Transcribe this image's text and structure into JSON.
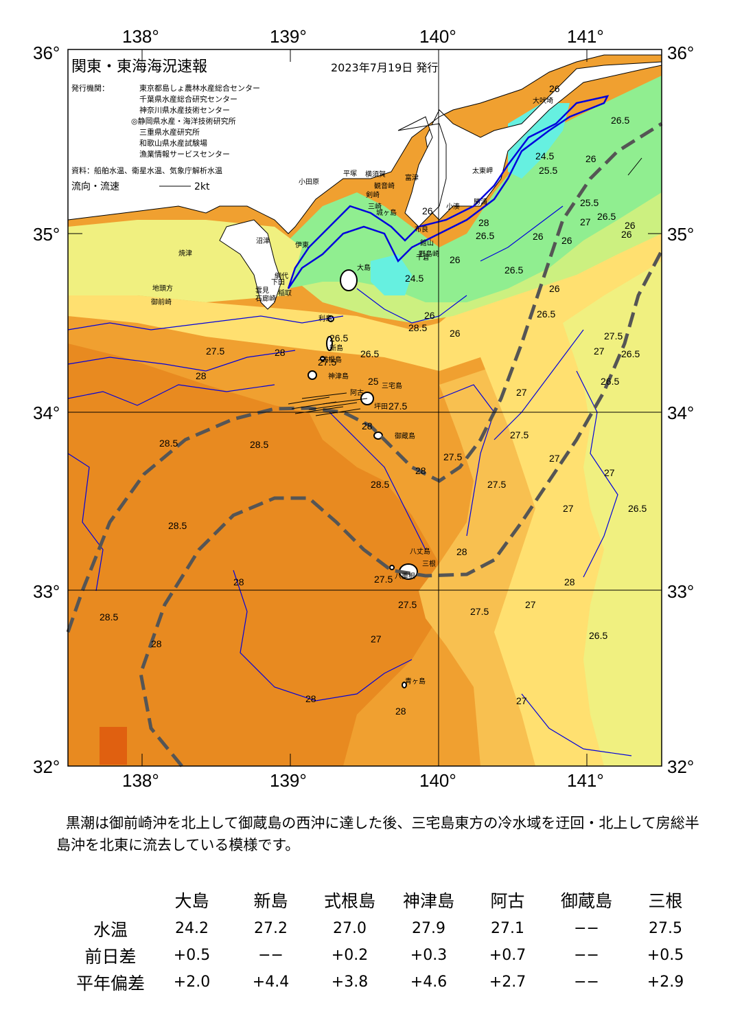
{
  "header": {
    "title": "関東・東海海況速報",
    "date": "2023年7月19日 発行",
    "publisher_label": "発行機関：",
    "publishers": [
      "東京都島しょ農林水産総合センター",
      "千葉県水産総合研究センター",
      "神奈川県水産技術センター",
      "◎静岡県水産・海洋技術研究所",
      "三重県水産研究所",
      "和歌山県水産試験場",
      "漁業情報サービスセンター"
    ],
    "source": "資料：船舶水温、衛星水温、気象庁解析水温",
    "flow_legend": "流向・流速",
    "flow_scale": "2kt"
  },
  "axes": {
    "lon_labels": [
      "138°",
      "139°",
      "140°",
      "141°"
    ],
    "lat_labels": [
      "36°",
      "35°",
      "34°",
      "33°",
      "32°"
    ]
  },
  "colors": {
    "white_land": "#ffffff",
    "t24": "#66f0e0",
    "t25": "#90ee90",
    "t26": "#ccf080",
    "t265": "#f0f080",
    "t27": "#ffe070",
    "t275": "#f8c050",
    "t28": "#f0a030",
    "t285": "#e87818",
    "kuroshio": "#505050",
    "contour": "#0000dd",
    "isotherm25": "#0000dd"
  },
  "contour_labels": [
    "26",
    "26.5",
    "26",
    "26",
    "25.5",
    "26",
    "24.5",
    "26",
    "26.5",
    "28",
    "26",
    "26",
    "26",
    "26",
    "24.5",
    "26.5",
    "26",
    "26.5",
    "25.5",
    "27",
    "26.5",
    "26",
    "27.5",
    "27",
    "26.5",
    "26.5",
    "28",
    "27.5",
    "28",
    "25",
    "26.5",
    "27.5",
    "28",
    "28.5",
    "28.5",
    "28.5",
    "28",
    "27.5",
    "27",
    "27",
    "27",
    "27.5",
    "27.5",
    "28",
    "28.5",
    "28",
    "28",
    "27.5",
    "27.5",
    "27",
    "26.5",
    "27",
    "28",
    "28.5",
    "28.5",
    "27.5",
    "26.5",
    "27",
    "28",
    "28",
    "27",
    "26.5",
    "27.5"
  ],
  "places": [
    "大吠埼",
    "太東岬",
    "勝浦",
    "小湊",
    "布良",
    "館山",
    "千倉",
    "野島崎",
    "富津",
    "大島",
    "利島",
    "新島",
    "式根島",
    "神津島",
    "三宅島",
    "坪田",
    "阿古",
    "御蔵島",
    "八丈島",
    "三根",
    "八重根",
    "青ヶ島",
    "小田原",
    "平塚",
    "横須賀",
    "観音崎",
    "剣崎",
    "城ヶ島",
    "三崎",
    "沼津",
    "伊東",
    "網代",
    "稲取",
    "下田",
    "石廊崎",
    "焼津",
    "地頭方",
    "御前崎",
    "雲見"
  ],
  "summary": "黒潮は御前崎沖を北上して御蔵島の西沖に達した後、三宅島東方の冷水域を迂回・北上して房総半島沖を北東に流去している模様です。",
  "table": {
    "stations": [
      "大島",
      "新島",
      "式根島",
      "神津島",
      "阿古",
      "御蔵島",
      "三根"
    ],
    "rows": [
      {
        "label": "水温",
        "values": [
          "24.2",
          "27.2",
          "27.0",
          "27.9",
          "27.1",
          "−−",
          "27.5"
        ]
      },
      {
        "label": "前日差",
        "values": [
          "+0.5",
          "−−",
          "+0.2",
          "+0.3",
          "+0.7",
          "−−",
          "+0.5"
        ]
      },
      {
        "label": "平年偏差",
        "values": [
          "+2.0",
          "+4.4",
          "+3.8",
          "+4.6",
          "+2.7",
          "−−",
          "+2.9"
        ]
      }
    ]
  }
}
